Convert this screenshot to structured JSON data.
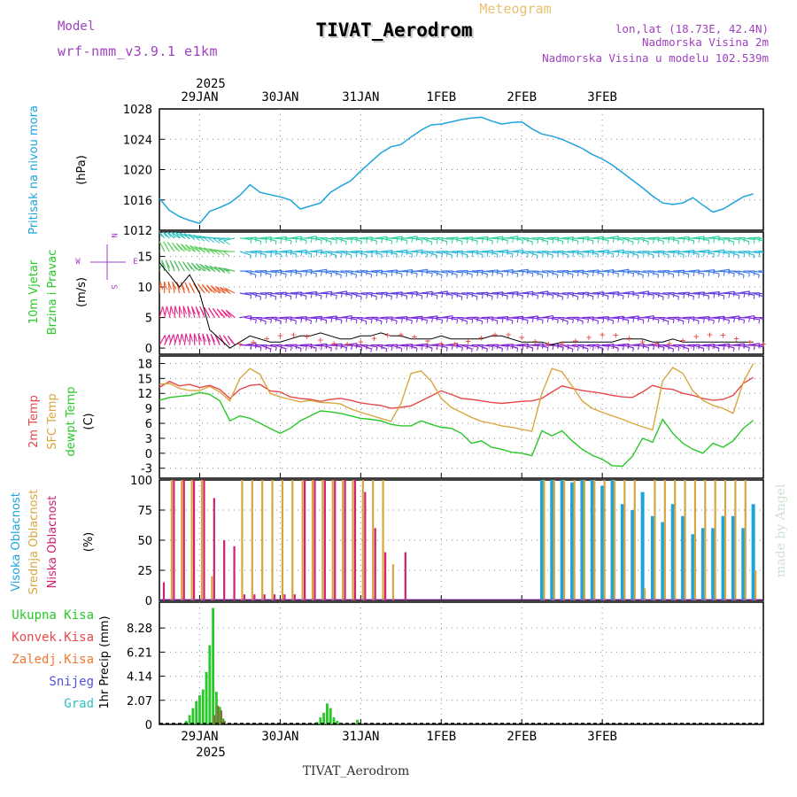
{
  "header": {
    "title": "TIVAT_Aerodrom",
    "subtitle": "Meteogram",
    "model_label": "Model",
    "model_name": "wrf-nmm_v3.9.1 e1km",
    "lonlat": "lon,lat (18.73E, 42.4N)",
    "elevation": "Nadmorska Visina 2m",
    "model_elevation": "Nadmorska Visina u modelu 102.539m",
    "footer_title": "TIVAT_Aerodrom",
    "watermark": "made by Angel"
  },
  "colors": {
    "pressure": "#1ea4dc",
    "temp2m": "#e8484a",
    "sfc_temp": "#d8a640",
    "dewpt": "#28c828",
    "high_cloud": "#1ea4dc",
    "mid_cloud": "#d8a640",
    "low_cloud": "#d02070",
    "label_model": "#a040c0",
    "label_subtitle": "#e8c070",
    "precip_total": "#28c828",
    "precip_conv": "#8b6c3c"
  },
  "chart_data": [
    {
      "id": "pressure",
      "type": "line",
      "ylabel": [
        "Pritisak na nivou mora",
        "(hPa)"
      ],
      "ylim": [
        1012,
        1028
      ],
      "yticks": [
        "1012",
        "1016",
        "1020",
        "1024",
        "1028"
      ],
      "x_start_hours": 0,
      "x_step_hours": 3,
      "series": [
        {
          "values": [
            1016.2,
            1014.6,
            1013.8,
            1013.3,
            1012.9,
            1014.5,
            1015.0,
            1015.6,
            1016.6,
            1018.0,
            1017.0,
            1016.7,
            1016.4,
            1016.0,
            1014.8,
            1015.2,
            1015.6,
            1017.0,
            1017.8,
            1018.5,
            1019.8,
            1021.0,
            1022.2,
            1023.0,
            1023.3,
            1024.3,
            1025.2,
            1025.9,
            1026.0,
            1026.3,
            1026.6,
            1026.8,
            1026.9,
            1026.4,
            1026.0,
            1026.2,
            1026.3,
            1025.4,
            1024.7,
            1024.4,
            1024.0,
            1023.4,
            1022.8,
            1022.0,
            1021.4,
            1020.6,
            1019.6,
            1018.6,
            1017.6,
            1016.5,
            1015.6,
            1015.4,
            1015.6,
            1016.3,
            1015.3,
            1014.4,
            1014.8,
            1015.6,
            1016.4,
            1016.8
          ]
        }
      ]
    },
    {
      "id": "wind",
      "type": "barbs",
      "ylabel": [
        "10m Vjetar",
        "Brzina i Pravac",
        "(m/s)"
      ],
      "compass": [
        "N",
        "E",
        "W",
        "S"
      ],
      "ylim": [
        -1,
        19
      ],
      "yticks": [
        "0",
        "5",
        "10",
        "15"
      ],
      "x_start_hours": 0,
      "x_step_hours": 3,
      "series": [
        {
          "values": [
            14,
            12,
            10,
            12,
            9,
            3,
            1.5,
            0,
            1,
            2,
            1.5,
            1,
            1,
            1.5,
            2,
            2,
            2.5,
            2,
            1.5,
            1.5,
            2,
            2,
            2.5,
            2,
            2,
            1.5,
            1.5,
            1.5,
            2,
            1.5,
            1.5,
            1.5,
            1.5,
            2,
            2,
            1.5,
            1,
            1,
            1,
            0.5,
            1,
            1,
            1,
            1,
            1,
            1,
            1.5,
            1.5,
            1.5,
            1,
            1,
            1.5,
            1,
            1,
            1,
            1,
            1,
            1,
            1,
            1
          ]
        }
      ]
    },
    {
      "id": "temperature",
      "type": "line",
      "ylabel": [
        "2m Temp",
        "SFC Temp",
        "dewpt Temp",
        "(C)"
      ],
      "ylim": [
        -5,
        19.5
      ],
      "yticks": [
        "-3",
        "0",
        "3",
        "6",
        "9",
        "12",
        "15",
        "18"
      ],
      "x_start_hours": 0,
      "x_step_hours": 3,
      "series": [
        {
          "name": "2m Temp",
          "values": [
            13.2,
            14.4,
            13.5,
            13.8,
            13.2,
            13.6,
            12.8,
            11.0,
            12.8,
            13.6,
            13.8,
            12.5,
            12.3,
            11.3,
            11.0,
            10.8,
            10.4,
            10.8,
            11.0,
            10.6,
            10.1,
            9.8,
            9.6,
            9.0,
            9.2,
            9.5,
            10.5,
            11.5,
            12.5,
            11.8,
            11.0,
            10.8,
            10.5,
            10.2,
            10.0,
            10.2,
            10.4,
            10.5,
            11.0,
            12.3,
            13.5,
            13.0,
            12.6,
            12.3,
            12.0,
            11.6,
            11.3,
            11.2,
            12.3,
            13.6,
            13.0,
            12.8,
            12.0,
            11.6,
            11.0,
            10.6,
            10.8,
            11.6,
            14.0,
            15.2
          ]
        },
        {
          "name": "SFC Temp",
          "values": [
            13.8,
            14.0,
            13.0,
            12.6,
            12.6,
            13.4,
            12.3,
            10.5,
            15.0,
            17.0,
            15.8,
            12.0,
            11.3,
            10.8,
            10.3,
            10.6,
            10.2,
            10.1,
            9.9,
            8.9,
            8.2,
            7.6,
            7.0,
            6.4,
            10.0,
            16.0,
            16.5,
            14.5,
            11.0,
            9.2,
            8.2,
            7.2,
            6.4,
            6.0,
            5.5,
            5.2,
            4.8,
            4.4,
            12.0,
            17.0,
            16.3,
            13.5,
            10.5,
            9.0,
            8.2,
            7.5,
            6.8,
            6.0,
            5.3,
            4.7,
            14.5,
            17.2,
            16.0,
            12.5,
            10.6,
            9.6,
            9.0,
            8.0,
            14.2,
            18.0
          ]
        },
        {
          "name": "dewpt Temp",
          "values": [
            10.6,
            11.2,
            11.4,
            11.6,
            12.2,
            11.8,
            10.5,
            6.5,
            7.5,
            7.0,
            6.0,
            5.0,
            4.0,
            5.0,
            6.5,
            7.5,
            8.5,
            8.3,
            8.0,
            7.5,
            7.0,
            6.8,
            6.5,
            5.8,
            5.5,
            5.5,
            6.5,
            5.8,
            5.2,
            5.0,
            4.0,
            2.0,
            2.5,
            1.2,
            0.8,
            0.2,
            0.0,
            -0.5,
            4.5,
            3.5,
            4.5,
            2.5,
            0.8,
            -0.4,
            -1.2,
            -2.5,
            -2.6,
            -0.6,
            3.0,
            2.2,
            6.8,
            4.0,
            2.0,
            0.8,
            0.0,
            2.0,
            1.2,
            2.5,
            5.0,
            6.6
          ]
        }
      ]
    },
    {
      "id": "clouds",
      "type": "bar",
      "ylabel": [
        "Visoka Oblacnost",
        "Srednja Oblacnost",
        "Niska Oblacnost",
        "(%)"
      ],
      "ylim": [
        0,
        100
      ],
      "yticks": [
        "0",
        "25",
        "50",
        "75",
        "100"
      ],
      "x_start_hours": 0,
      "x_step_hours": 3,
      "series": [
        {
          "name": "Visoka Oblacnost",
          "values": [
            0,
            0,
            0,
            0,
            0,
            0,
            0,
            0,
            0,
            0,
            0,
            0,
            0,
            0,
            0,
            0,
            0,
            0,
            0,
            0,
            0,
            0,
            0,
            0,
            0,
            0,
            0,
            0,
            0,
            0,
            0,
            0,
            0,
            0,
            0,
            0,
            0,
            0,
            100,
            100,
            100,
            98,
            100,
            100,
            95,
            100,
            80,
            75,
            90,
            70,
            65,
            80,
            70,
            55,
            60,
            60,
            70,
            70,
            60,
            80
          ]
        },
        {
          "name": "Srednja Oblacnost",
          "values": [
            0,
            100,
            100,
            100,
            100,
            20,
            0,
            0,
            100,
            100,
            100,
            100,
            100,
            100,
            100,
            100,
            100,
            100,
            100,
            100,
            100,
            100,
            100,
            30,
            0,
            0,
            0,
            0,
            0,
            0,
            0,
            0,
            0,
            0,
            0,
            0,
            0,
            0,
            100,
            100,
            100,
            100,
            100,
            100,
            100,
            100,
            100,
            100,
            10,
            100,
            100,
            100,
            100,
            100,
            100,
            100,
            100,
            100,
            100,
            25
          ]
        },
        {
          "name": "Niska Oblacnost",
          "values": [
            15,
            100,
            100,
            100,
            100,
            85,
            50,
            45,
            5,
            5,
            5,
            5,
            5,
            5,
            100,
            100,
            100,
            100,
            100,
            100,
            90,
            60,
            40,
            0,
            40,
            0,
            0,
            0,
            0,
            0,
            0,
            0,
            0,
            0,
            0,
            0,
            0,
            0,
            0,
            0,
            0,
            0,
            0,
            0,
            0,
            0,
            0,
            0,
            0,
            0,
            0,
            0,
            0,
            0,
            0,
            0,
            0,
            0,
            0,
            0
          ]
        }
      ]
    },
    {
      "id": "precip",
      "type": "bar",
      "ylabel": [
        "1hr Precip (mm)"
      ],
      "legend": [
        "Ukupna Kisa",
        "Konvek.Kisa",
        "Zaledj.Kisa",
        "Snijeg",
        "Grad"
      ],
      "ylim": [
        0,
        10.5
      ],
      "yticks": [
        "0",
        "2.07",
        "4.14",
        "6.21",
        "8.28"
      ],
      "x_start_hours": 1,
      "x_step_hours": 1,
      "series": [
        {
          "name": "Ukupna Kisa",
          "values": [
            0,
            0,
            0,
            0,
            0,
            0,
            0,
            0.3,
            0.8,
            1.4,
            2.0,
            2.5,
            3.0,
            4.5,
            6.8,
            10.0,
            2.8,
            1.5,
            0.5,
            0,
            0,
            0,
            0,
            0,
            0,
            0,
            0,
            0,
            0,
            0,
            0,
            0,
            0,
            0,
            0,
            0,
            0,
            0,
            0,
            0,
            0,
            0,
            0,
            0,
            0,
            0,
            0.2,
            0.6,
            1.0,
            1.8,
            1.4,
            0.6,
            0.3,
            0.1,
            0,
            0.1,
            0,
            0,
            0.4,
            0
          ]
        },
        {
          "name": "Konvek.Kisa",
          "values": [
            0,
            0,
            0,
            0,
            0,
            0,
            0,
            0,
            0,
            0,
            0,
            0,
            0,
            0,
            0,
            0.8,
            1.6,
            1.2,
            0.3,
            0,
            0,
            0,
            0,
            0,
            0,
            0,
            0,
            0,
            0,
            0,
            0,
            0,
            0,
            0,
            0,
            0,
            0,
            0,
            0,
            0,
            0,
            0,
            0,
            0,
            0,
            0,
            0,
            0,
            0,
            0,
            0,
            0,
            0,
            0,
            0,
            0,
            0,
            0,
            0,
            0
          ]
        }
      ]
    }
  ],
  "x_axis": {
    "start_date": "2025-01-28",
    "start_hour": 12,
    "total_hours": 180,
    "year_label": "2025",
    "labels": [
      {
        "text": "29JAN",
        "hour": 12
      },
      {
        "text": "30JAN",
        "hour": 36
      },
      {
        "text": "31JAN",
        "hour": 60
      },
      {
        "text": "1FEB",
        "hour": 84
      },
      {
        "text": "2FEB",
        "hour": 108
      },
      {
        "text": "3FEB",
        "hour": 132
      }
    ]
  }
}
